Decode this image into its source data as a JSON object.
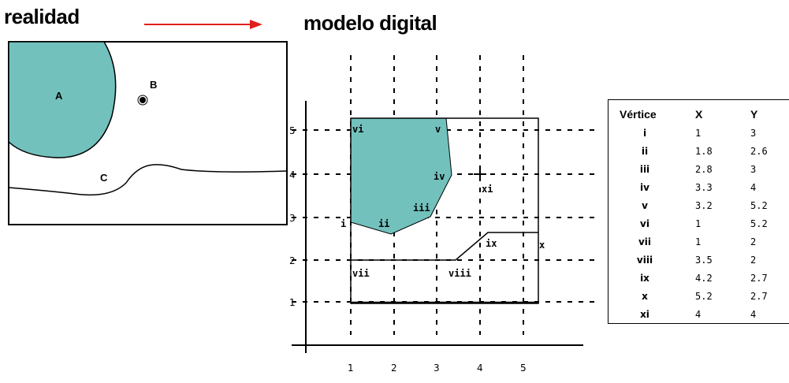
{
  "headings": {
    "left": "realidad",
    "right": "modelo digital"
  },
  "reality": {
    "labels": [
      "A",
      "B",
      "C"
    ],
    "fill_color": "#72c1bd"
  },
  "model": {
    "axis_ticks_x": [
      "1",
      "2",
      "3",
      "4",
      "5"
    ],
    "axis_ticks_y": [
      "1",
      "2",
      "3",
      "4",
      "5"
    ],
    "vertex_labels": [
      "i",
      "ii",
      "iii",
      "iv",
      "v",
      "vi",
      "vii",
      "viii",
      "ix",
      "x",
      "xi"
    ],
    "polygon_color": "#72c1bd",
    "arrow_color": "#e0201c"
  },
  "table": {
    "headers": [
      "Vértice",
      "X",
      "Y"
    ],
    "rows": [
      {
        "v": "i",
        "x": "1",
        "y": "3"
      },
      {
        "v": "ii",
        "x": "1.8",
        "y": "2.6"
      },
      {
        "v": "iii",
        "x": "2.8",
        "y": "3"
      },
      {
        "v": "iv",
        "x": "3.3",
        "y": "4"
      },
      {
        "v": "v",
        "x": "3.2",
        "y": "5.2"
      },
      {
        "v": "vi",
        "x": "1",
        "y": "5.2"
      },
      {
        "v": "vii",
        "x": "1",
        "y": "2"
      },
      {
        "v": "viii",
        "x": "3.5",
        "y": "2"
      },
      {
        "v": "ix",
        "x": "4.2",
        "y": "2.7"
      },
      {
        "v": "x",
        "x": "5.2",
        "y": "2.7"
      },
      {
        "v": "xi",
        "x": "4",
        "y": "4"
      }
    ]
  }
}
